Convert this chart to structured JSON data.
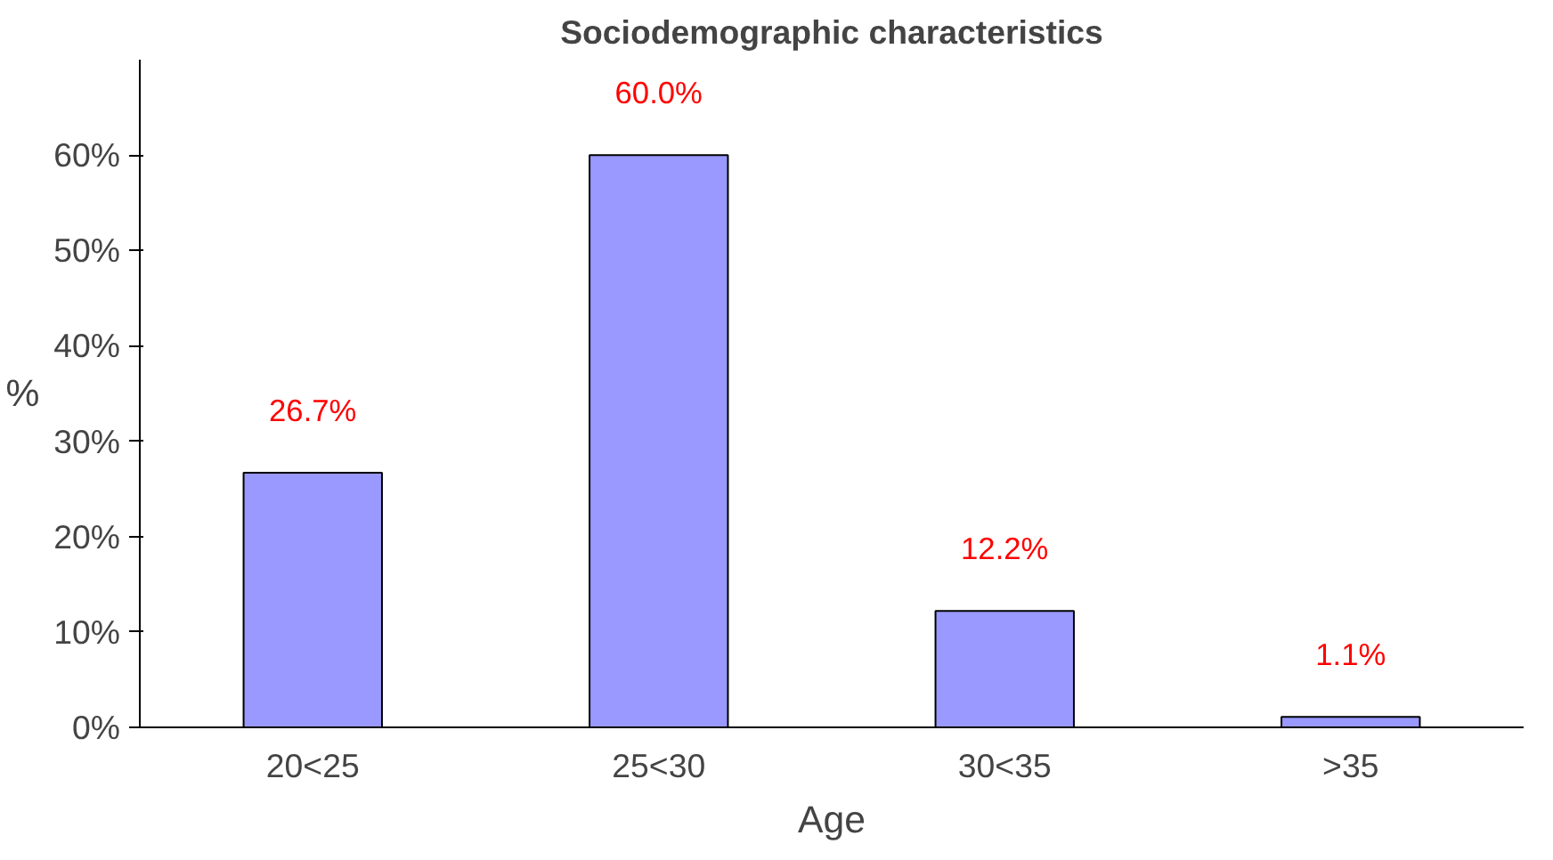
{
  "chart_data": {
    "type": "bar",
    "title": "Sociodemographic characteristics",
    "xlabel": "Age",
    "ylabel": "%",
    "categories": [
      "20<25",
      "25<30",
      "30<35",
      ">35"
    ],
    "values": [
      26.7,
      60.0,
      12.2,
      1.1
    ],
    "value_labels": [
      "26.7%",
      "60.0%",
      "12.2%",
      "1.1%"
    ],
    "color": "#9999ff",
    "ylim": [
      0,
      70
    ],
    "yticks": [
      {
        "value": 0,
        "label": "0%"
      },
      {
        "value": 10,
        "label": "10%"
      },
      {
        "value": 20,
        "label": "20%"
      },
      {
        "value": 30,
        "label": "30%"
      },
      {
        "value": 40,
        "label": "40%"
      },
      {
        "value": 50,
        "label": "50%"
      },
      {
        "value": 60,
        "label": "60%"
      }
    ],
    "grid": false
  }
}
